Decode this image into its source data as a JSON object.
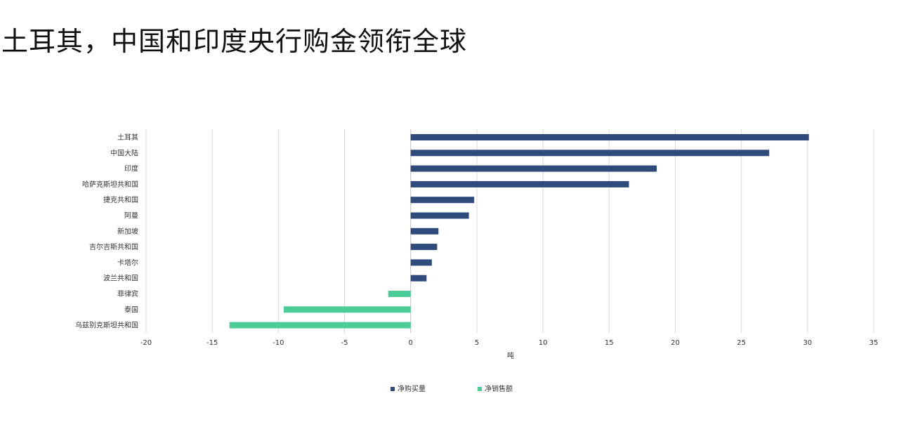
{
  "title": "土耳其，中国和印度央行购金领衔全球",
  "colors": {
    "buy": "#2e4b7c",
    "sell": "#4ccd98",
    "grid": "#d9d9d9",
    "text": "#333333"
  },
  "chart_data": {
    "type": "bar",
    "orientation": "horizontal",
    "categories": [
      "土耳其",
      "中国大陆",
      "印度",
      "哈萨克斯坦共和国",
      "捷克共和国",
      "阿曼",
      "新加坡",
      "吉尔吉斯共和国",
      "卡塔尔",
      "波兰共和国",
      "菲律宾",
      "泰国",
      "乌兹别克斯坦共和国"
    ],
    "series": [
      {
        "name": "净购买量",
        "values": [
          30.1,
          27.1,
          18.6,
          16.5,
          4.8,
          4.4,
          2.1,
          2.0,
          1.6,
          1.2,
          null,
          null,
          null
        ]
      },
      {
        "name": "净销售额",
        "values": [
          null,
          null,
          null,
          null,
          null,
          null,
          null,
          null,
          null,
          null,
          -1.7,
          -9.6,
          -13.7
        ]
      }
    ],
    "xlabel": "吨",
    "xlim": [
      -20,
      35
    ],
    "xticks": [
      -20,
      -15,
      -10,
      -5,
      0,
      5,
      10,
      15,
      20,
      25,
      30,
      35
    ],
    "grid": true,
    "legend_position": "bottom"
  }
}
